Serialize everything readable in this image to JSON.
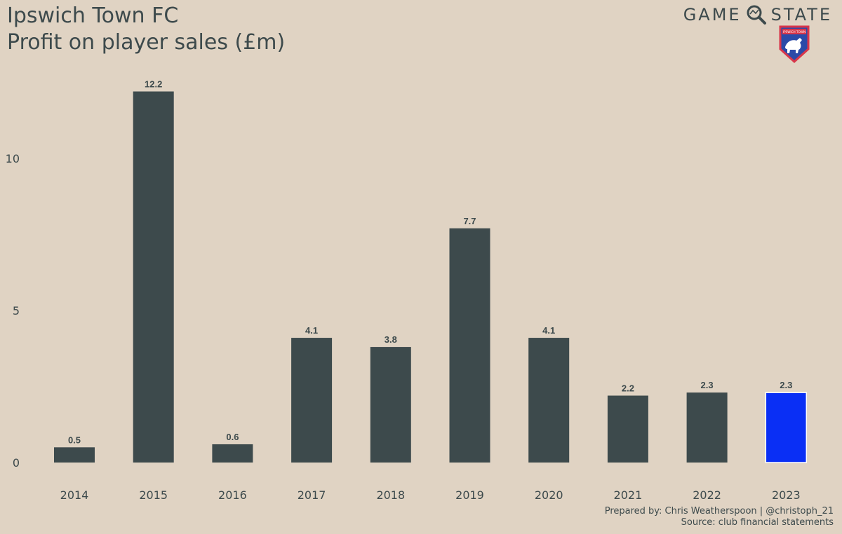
{
  "header": {
    "title_line1": "Ipswich Town FC",
    "title_line2": "Profit on player sales (£m)"
  },
  "brand": {
    "word_left": "GAME",
    "word_right": "STATE",
    "icon": "magnifier-icon",
    "crest_icon": "ipswich-town-crest-icon",
    "crest_text": "IPSWICH TOWN"
  },
  "credits": {
    "line1": "Prepared by: Chris Weatherspoon | @christoph_21",
    "line2": "Source: club financial statements"
  },
  "chart_data": {
    "type": "bar",
    "title": "Ipswich Town FC Profit on player sales (£m)",
    "categories": [
      "2014",
      "2015",
      "2016",
      "2017",
      "2018",
      "2019",
      "2020",
      "2021",
      "2022",
      "2023"
    ],
    "values": [
      0.5,
      12.2,
      0.6,
      4.1,
      3.8,
      7.7,
      4.1,
      2.2,
      2.3,
      2.3
    ],
    "data_labels": [
      "0.5",
      "12.2",
      "0.6",
      "4.1",
      "3.8",
      "7.7",
      "4.1",
      "2.2",
      "2.3",
      "2.3"
    ],
    "yticks": [
      0,
      5,
      10
    ],
    "ylim": [
      0,
      12.6
    ],
    "xlabel": "",
    "ylabel": "",
    "grid": false,
    "highlight_index": 9,
    "colors": {
      "bar": "#3d4a4c",
      "highlight": "#0a2ff5",
      "background": "#e0d3c3",
      "text": "#3d4a4c"
    }
  }
}
